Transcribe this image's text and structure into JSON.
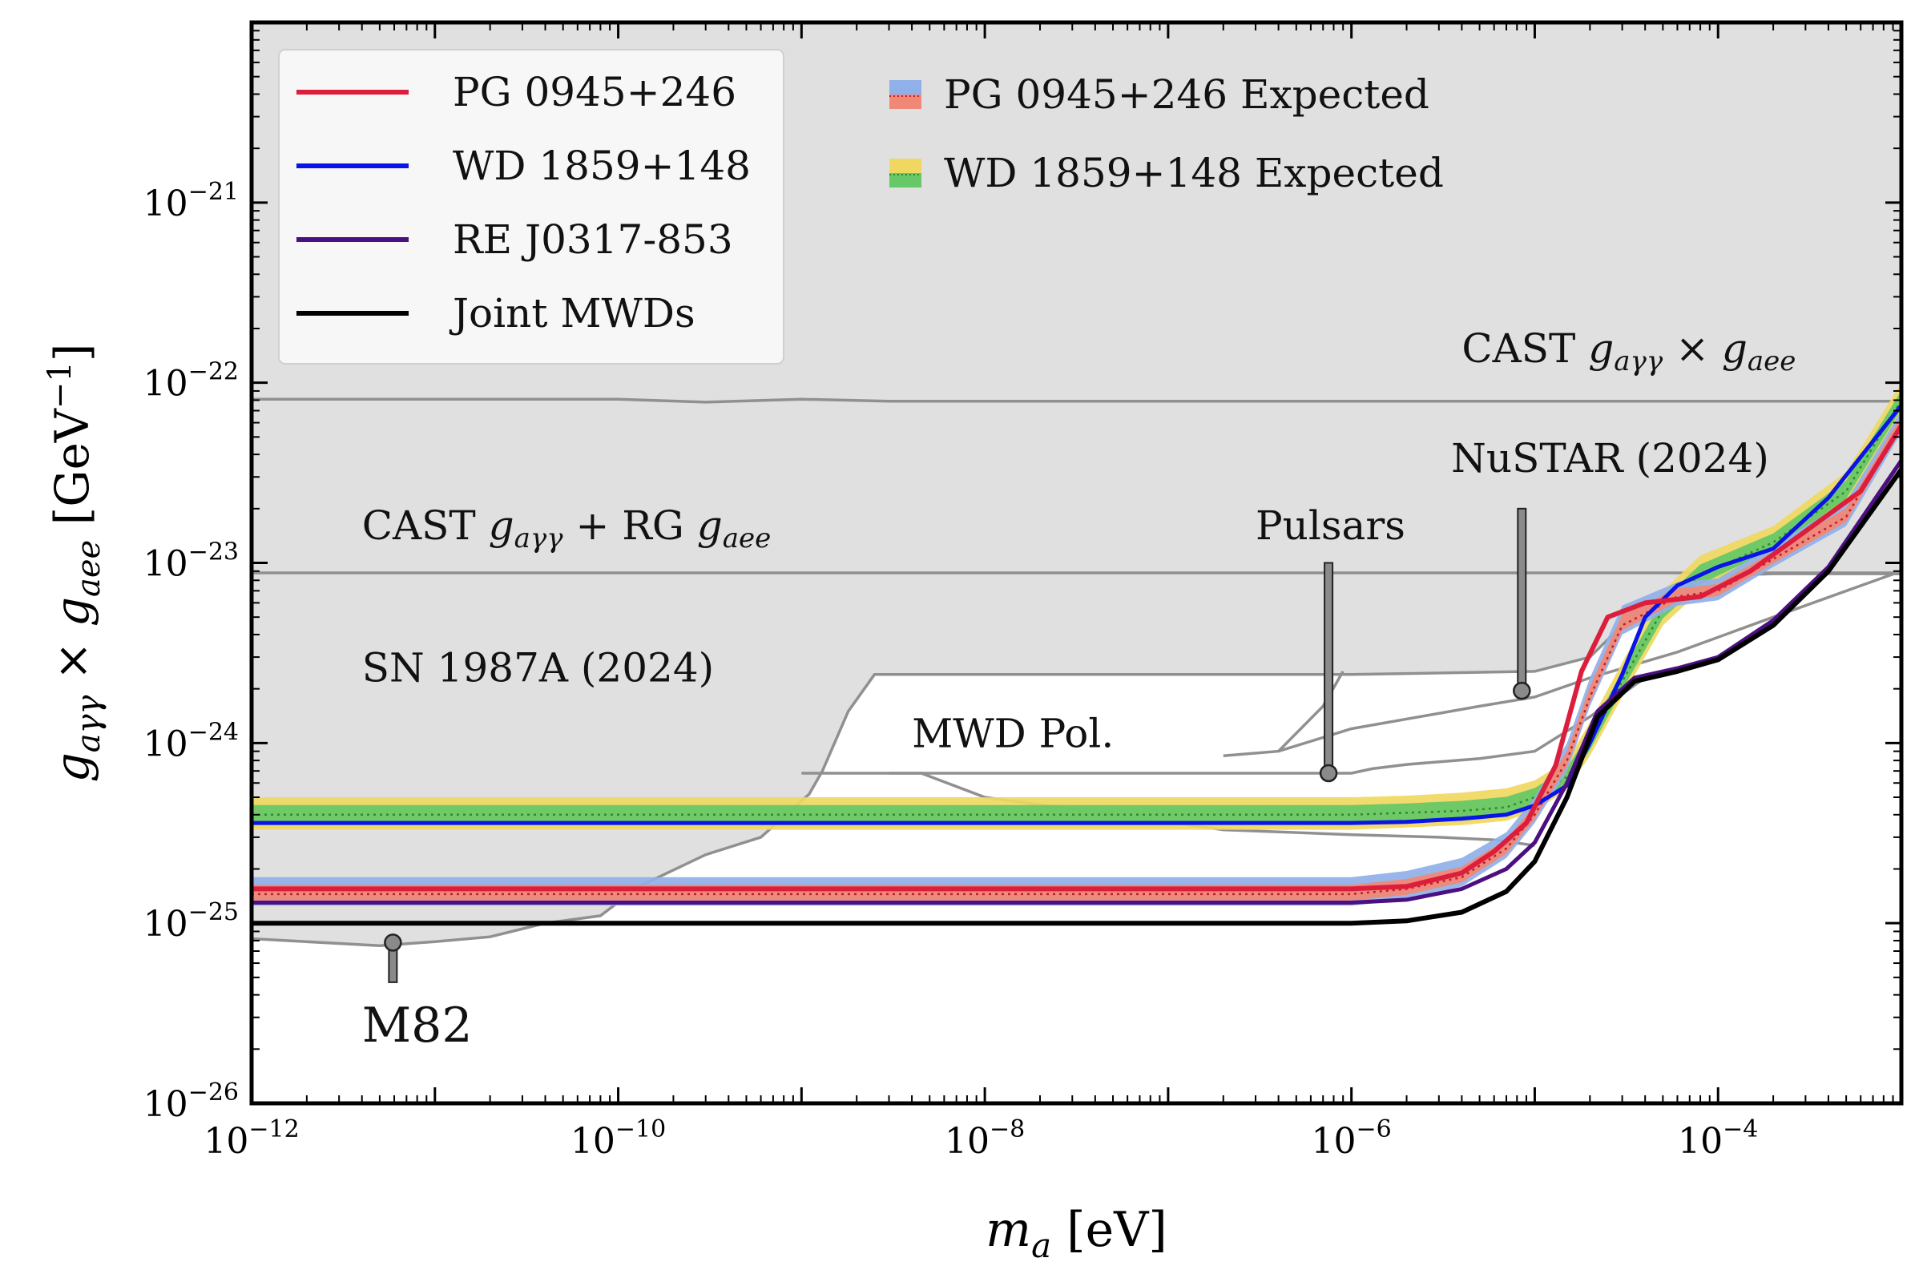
{
  "chart_data": {
    "type": "line",
    "xscale": "log",
    "yscale": "log",
    "xlim": [
      1e-12,
      0.001
    ],
    "ylim": [
      1e-26,
      1e-20
    ],
    "xlabel": {
      "main": "m",
      "sub": "a",
      "unit": "[eV]"
    },
    "ylabel": {
      "main": "g",
      "sub1": "aγγ",
      "times": "×",
      "sub2": "aee",
      "unit": "[GeV",
      "exp": "−1",
      "close": "]"
    },
    "xticks": [
      {
        "value": 1e-12,
        "base": "10",
        "exp": "−12"
      },
      {
        "value": 1e-10,
        "base": "10",
        "exp": "−10"
      },
      {
        "value": 1e-08,
        "base": "10",
        "exp": "−8"
      },
      {
        "value": 1e-06,
        "base": "10",
        "exp": "−6"
      },
      {
        "value": 0.0001,
        "base": "10",
        "exp": "−4"
      }
    ],
    "yticks": [
      {
        "value": 1e-26,
        "base": "10",
        "exp": "−26"
      },
      {
        "value": 1e-25,
        "base": "10",
        "exp": "−25"
      },
      {
        "value": 1e-24,
        "base": "10",
        "exp": "−24"
      },
      {
        "value": 1e-23,
        "base": "10",
        "exp": "−23"
      },
      {
        "value": 1e-22,
        "base": "10",
        "exp": "−22"
      },
      {
        "value": 1e-21,
        "base": "10",
        "exp": "−21"
      }
    ],
    "excluded_region": {
      "color": "#e0e0e0",
      "boundary": [
        [
          1e-12,
          8.2e-26
        ],
        [
          5e-12,
          7.5e-26
        ],
        [
          1e-11,
          7.9e-26
        ],
        [
          2e-11,
          8.4e-26
        ],
        [
          4e-11,
          1e-25
        ],
        [
          8e-11,
          1.1e-25
        ],
        [
          1.3e-10,
          1.6e-25
        ],
        [
          3e-10,
          2.4e-25
        ],
        [
          6e-10,
          3e-25
        ],
        [
          1.1e-09,
          5.2e-25
        ],
        [
          1.3e-09,
          7e-25
        ],
        [
          1.8e-09,
          1.5e-24
        ],
        [
          2.5e-09,
          2.4e-24
        ],
        [
          3e-08,
          2.4e-24
        ],
        [
          1e-06,
          2.4e-24
        ],
        [
          1e-05,
          2.5e-24
        ],
        [
          2e-05,
          3e-24
        ],
        [
          3e-05,
          4.5e-24
        ],
        [
          6e-05,
          7e-24
        ],
        [
          0.0001,
          8.5e-24
        ],
        [
          0.0002,
          8.7e-24
        ],
        [
          0.001,
          8.7e-24
        ]
      ]
    },
    "reference_curves": [
      {
        "name": "CAST g_aγγ × g_aee",
        "color": "#909090",
        "points": [
          [
            1e-12,
            8.1e-23
          ],
          [
            1e-10,
            8.1e-23
          ],
          [
            3e-10,
            7.8e-23
          ],
          [
            1e-09,
            8.1e-23
          ],
          [
            3e-09,
            7.9e-23
          ],
          [
            1e-07,
            7.9e-23
          ],
          [
            1e-05,
            7.9e-23
          ],
          [
            0.001,
            7.9e-23
          ]
        ]
      },
      {
        "name": "CAST g_aγγ + RG g_aee",
        "color": "#909090",
        "points": [
          [
            1e-12,
            8.8e-24
          ],
          [
            0.0001,
            8.8e-24
          ],
          [
            0.001,
            8.8e-24
          ]
        ]
      },
      {
        "name": "MWD Pol.",
        "color": "#909090",
        "points": [
          [
            1e-09,
            6.8e-25
          ],
          [
            2e-09,
            6.8e-25
          ],
          [
            1e-06,
            6.8e-25
          ],
          [
            1.3e-06,
            7.2e-25
          ],
          [
            2e-06,
            7.6e-25
          ],
          [
            5e-06,
            8.2e-25
          ],
          [
            1e-05,
            9e-25
          ],
          [
            2e-05,
            1.4e-24
          ],
          [
            4e-05,
            2.3e-24
          ]
        ]
      },
      {
        "name": "MWD Pol. lower",
        "color": "#909090",
        "points": [
          [
            3e-09,
            6.8e-25
          ],
          [
            4.5e-09,
            6.8e-25
          ],
          [
            1e-08,
            5e-25
          ],
          [
            5e-08,
            4e-25
          ],
          [
            2e-07,
            3.3e-25
          ],
          [
            1e-06,
            3.1e-25
          ],
          [
            3e-06,
            3e-25
          ],
          [
            6e-06,
            2.9e-25
          ],
          [
            1e-05,
            2.7e-25
          ]
        ]
      },
      {
        "name": "Pulsars",
        "color": "#909090",
        "points": [
          [
            2e-07,
            8.5e-25
          ],
          [
            4e-07,
            9e-25
          ],
          [
            7e-07,
            1.6e-24
          ],
          [
            9e-07,
            2.5e-24
          ]
        ]
      },
      {
        "name": "NuSTAR (2024)",
        "color": "#909090",
        "points": [
          [
            4e-07,
            9e-25
          ],
          [
            1e-06,
            1.2e-24
          ],
          [
            5e-06,
            1.6e-24
          ],
          [
            1e-05,
            1.8e-24
          ],
          [
            2e-05,
            2.3e-24
          ],
          [
            6e-05,
            3.2e-24
          ],
          [
            0.0002,
            5e-24
          ],
          [
            0.001,
            9e-24
          ]
        ]
      }
    ],
    "bands": [
      {
        "name": "WD 1859+148 Expected",
        "colors": [
          "#f0d860",
          "#66c866"
        ],
        "median_color": "#2e8b2e",
        "points": [
          [
            1e-12,
            4e-25,
            3.3e-25,
            5e-25
          ],
          [
            1e-06,
            4e-25,
            3.3e-25,
            5e-25
          ],
          [
            2e-06,
            4.1e-25,
            3.4e-25,
            5.1e-25
          ],
          [
            4e-06,
            4.2e-25,
            3.5e-25,
            5.3e-25
          ],
          [
            7e-06,
            4.4e-25,
            3.7e-25,
            5.6e-25
          ],
          [
            1e-05,
            5e-25,
            4.2e-25,
            6.2e-25
          ],
          [
            1.5e-05,
            6.5e-25,
            5.5e-25,
            8e-25
          ],
          [
            2e-05,
            1e-24,
            8.5e-25,
            1.3e-24
          ],
          [
            3e-05,
            2.2e-24,
            1.8e-24,
            2.8e-24
          ],
          [
            5e-05,
            5.5e-24,
            4.5e-24,
            7e-24
          ],
          [
            8e-05,
            8.5e-24,
            7e-24,
            1.1e-23
          ],
          [
            0.0002,
            1.3e-23,
            1.1e-23,
            1.6e-23
          ],
          [
            0.0005,
            2.5e-23,
            2.1e-23,
            3.2e-23
          ],
          [
            0.001,
            8e-23,
            6.5e-23,
            1e-22
          ]
        ]
      },
      {
        "name": "PG 0945+246 Expected",
        "colors": [
          "#8fb0e8",
          "#f08878"
        ],
        "median_color": "#c02020",
        "points": [
          [
            1e-12,
            1.45e-25,
            1.25e-25,
            1.8e-25
          ],
          [
            1e-06,
            1.45e-25,
            1.25e-25,
            1.8e-25
          ],
          [
            2e-06,
            1.55e-25,
            1.35e-25,
            1.95e-25
          ],
          [
            4e-06,
            1.8e-25,
            1.6e-25,
            2.3e-25
          ],
          [
            7e-06,
            2.6e-25,
            2.3e-25,
            3.2e-25
          ],
          [
            1e-05,
            4e-25,
            3.6e-25,
            5e-25
          ],
          [
            1.5e-05,
            8e-25,
            7e-25,
            1e-24
          ],
          [
            2e-05,
            1.8e-24,
            1.6e-24,
            2.3e-24
          ],
          [
            3e-05,
            4.5e-24,
            4e-24,
            5.8e-24
          ],
          [
            6e-05,
            6.5e-24,
            5.8e-24,
            7.8e-24
          ],
          [
            0.0001,
            7e-24,
            6.2e-24,
            8.2e-24
          ],
          [
            0.0002,
            1.05e-23,
            9.5e-24,
            1.25e-23
          ],
          [
            0.0005,
            1.8e-23,
            1.6e-23,
            2.2e-23
          ],
          [
            0.001,
            6e-23,
            5.3e-23,
            7e-23
          ]
        ]
      }
    ],
    "series": [
      {
        "name": "WD 1859+148",
        "color": "#0a14e6",
        "width": 5,
        "points": [
          [
            1e-12,
            3.6e-25
          ],
          [
            1e-06,
            3.6e-25
          ],
          [
            2e-06,
            3.65e-25
          ],
          [
            4e-06,
            3.8e-25
          ],
          [
            7e-06,
            4e-25
          ],
          [
            1e-05,
            4.5e-25
          ],
          [
            1.5e-05,
            5.8e-25
          ],
          [
            2e-05,
            1e-24
          ],
          [
            3e-05,
            2.4e-24
          ],
          [
            4e-05,
            5e-24
          ],
          [
            6e-05,
            7.5e-24
          ],
          [
            0.0001,
            9.5e-24
          ],
          [
            0.0002,
            1.2e-23
          ],
          [
            0.0004,
            2.3e-23
          ],
          [
            0.001,
            7.5e-23
          ]
        ]
      },
      {
        "name": "PG 0945+246",
        "color": "#dc1e3c",
        "width": 6,
        "points": [
          [
            1e-12,
            1.55e-25
          ],
          [
            1e-06,
            1.55e-25
          ],
          [
            2e-06,
            1.6e-25
          ],
          [
            4e-06,
            1.9e-25
          ],
          [
            6e-06,
            2.5e-25
          ],
          [
            9e-06,
            3.6e-25
          ],
          [
            1.3e-05,
            7.5e-25
          ],
          [
            1.8e-05,
            2.5e-24
          ],
          [
            2.5e-05,
            5e-24
          ],
          [
            4e-05,
            6e-24
          ],
          [
            8e-05,
            6.5e-24
          ],
          [
            0.00015,
            9e-24
          ],
          [
            0.0003,
            1.5e-23
          ],
          [
            0.0006,
            2.5e-23
          ],
          [
            0.001,
            5.8e-23
          ]
        ]
      },
      {
        "name": "RE J0317-853",
        "color": "#4b0f82",
        "width": 5,
        "points": [
          [
            1e-12,
            1.3e-25
          ],
          [
            1e-06,
            1.3e-25
          ],
          [
            2e-06,
            1.35e-25
          ],
          [
            4e-06,
            1.55e-25
          ],
          [
            7e-06,
            2e-25
          ],
          [
            1e-05,
            2.8e-25
          ],
          [
            1.5e-05,
            6e-25
          ],
          [
            2.2e-05,
            1.5e-24
          ],
          [
            3.5e-05,
            2.3e-24
          ],
          [
            6e-05,
            2.6e-24
          ],
          [
            0.0001,
            3e-24
          ],
          [
            0.0002,
            4.8e-24
          ],
          [
            0.0004,
            9.5e-24
          ],
          [
            0.001,
            3.7e-23
          ]
        ]
      },
      {
        "name": "Joint MWDs",
        "color": "#000000",
        "width": 6,
        "points": [
          [
            1e-12,
            1e-25
          ],
          [
            1e-06,
            1e-25
          ],
          [
            2e-06,
            1.03e-25
          ],
          [
            4e-06,
            1.15e-25
          ],
          [
            7e-06,
            1.5e-25
          ],
          [
            1e-05,
            2.2e-25
          ],
          [
            1.5e-05,
            5e-25
          ],
          [
            2.2e-05,
            1.4e-24
          ],
          [
            3.5e-05,
            2.2e-24
          ],
          [
            6e-05,
            2.5e-24
          ],
          [
            0.0001,
            2.9e-24
          ],
          [
            0.0002,
            4.5e-24
          ],
          [
            0.0004,
            9e-24
          ],
          [
            0.001,
            3.3e-23
          ]
        ]
      }
    ],
    "annotations": [
      {
        "text": "SN 1987A (2024)",
        "pos": [
          4e-12,
          2.2e-24
        ],
        "size": "normal"
      },
      {
        "text": "MWD Pol.",
        "pos": [
          4e-09,
          9.5e-25
        ],
        "size": "normal"
      },
      {
        "text": "Pulsars",
        "pos": [
          3e-07,
          1.35e-23
        ],
        "size": "normal"
      },
      {
        "text": "NuSTAR (2024)",
        "pos": [
          3.5e-06,
          3.2e-23
        ],
        "size": "normal"
      },
      {
        "text": "M82",
        "pos": [
          4e-12,
          2.2e-26
        ],
        "size": "large"
      }
    ],
    "math_annotations": [
      {
        "pre": "CAST ",
        "g": "g",
        "sub1": "aγγ",
        "op": " + RG ",
        "g2": "g",
        "sub2": "aee",
        "pos": [
          4e-12,
          1.35e-23
        ]
      },
      {
        "pre": "CAST ",
        "g": "g",
        "sub1": "aγγ",
        "op": " × ",
        "g2": "g",
        "sub2": "aee",
        "pos": [
          4e-06,
          1.3e-22
        ]
      }
    ],
    "markers": [
      {
        "name": "M82",
        "x": 5.9e-12,
        "y_dot": 7.8e-26,
        "y_end": 4.7e-26
      },
      {
        "name": "Pulsars",
        "x": 7.5e-07,
        "y_dot": 6.8e-25,
        "y_end": 1e-23
      },
      {
        "name": "NuSTAR (2024)",
        "x": 8.5e-06,
        "y_dot": 1.95e-24,
        "y_end": 2e-23
      }
    ],
    "legend": {
      "lines": [
        {
          "label": "PG 0945+246",
          "color": "#dc1e3c"
        },
        {
          "label": "WD 1859+148",
          "color": "#0a14e6"
        },
        {
          "label": "RE J0317-853",
          "color": "#4b0f82"
        },
        {
          "label": "Joint MWDs",
          "color": "#000000"
        }
      ],
      "bands": [
        {
          "label": "PG 0945+246 Expected",
          "colors": [
            "#8fb0e8",
            "#f08878"
          ],
          "dot_color": "#c02020"
        },
        {
          "label": "WD 1859+148 Expected",
          "colors": [
            "#f0d860",
            "#66c866"
          ],
          "dot_color": "#2e8b2e"
        }
      ],
      "placement": "upper-left"
    }
  }
}
